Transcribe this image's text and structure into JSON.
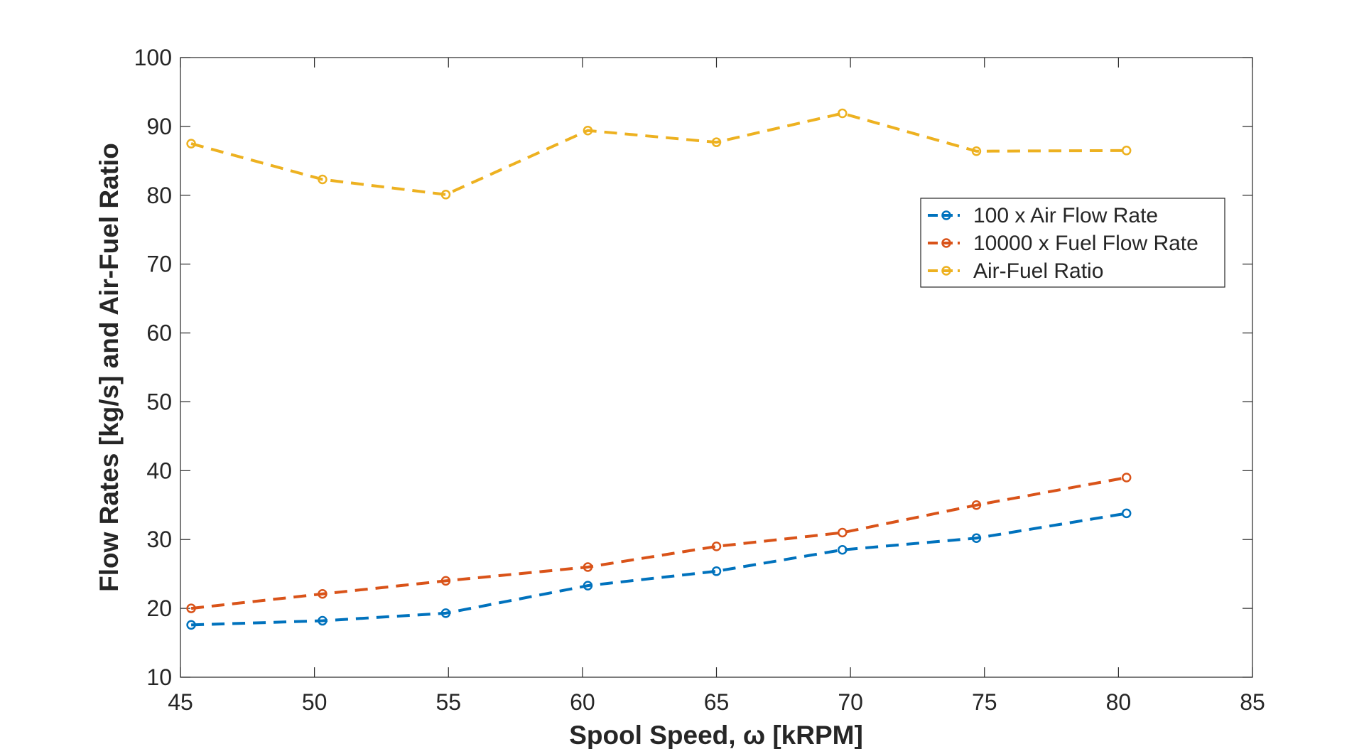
{
  "chart_data": {
    "type": "line",
    "title": "",
    "xlabel": "Spool Speed, ω [kRPM]",
    "ylabel": "Flow Rates [kg/s] and Air-Fuel Ratio",
    "xlim": [
      45,
      85
    ],
    "ylim": [
      10,
      100
    ],
    "xticks": [
      45,
      50,
      55,
      60,
      65,
      70,
      75,
      80,
      85
    ],
    "yticks": [
      10,
      20,
      30,
      40,
      50,
      60,
      70,
      80,
      90,
      100
    ],
    "grid": false,
    "legend_position": "upper-right",
    "line_style": "dashed",
    "marker": "circle",
    "x": [
      45.4,
      50.3,
      54.9,
      60.2,
      65.0,
      69.7,
      74.7,
      80.3
    ],
    "series": [
      {
        "name": "100 x Air Flow Rate",
        "color": "#0072BD",
        "values": [
          17.6,
          18.2,
          19.3,
          23.3,
          25.4,
          28.5,
          30.2,
          33.8
        ]
      },
      {
        "name": "10000 x Fuel Flow Rate",
        "color": "#D95319",
        "values": [
          20.0,
          22.1,
          24.0,
          26.0,
          29.0,
          31.0,
          35.0,
          39.0
        ]
      },
      {
        "name": "Air-Fuel Ratio",
        "color": "#EDB120",
        "values": [
          87.5,
          82.3,
          80.1,
          89.4,
          87.7,
          91.9,
          86.4,
          86.5
        ]
      }
    ]
  }
}
